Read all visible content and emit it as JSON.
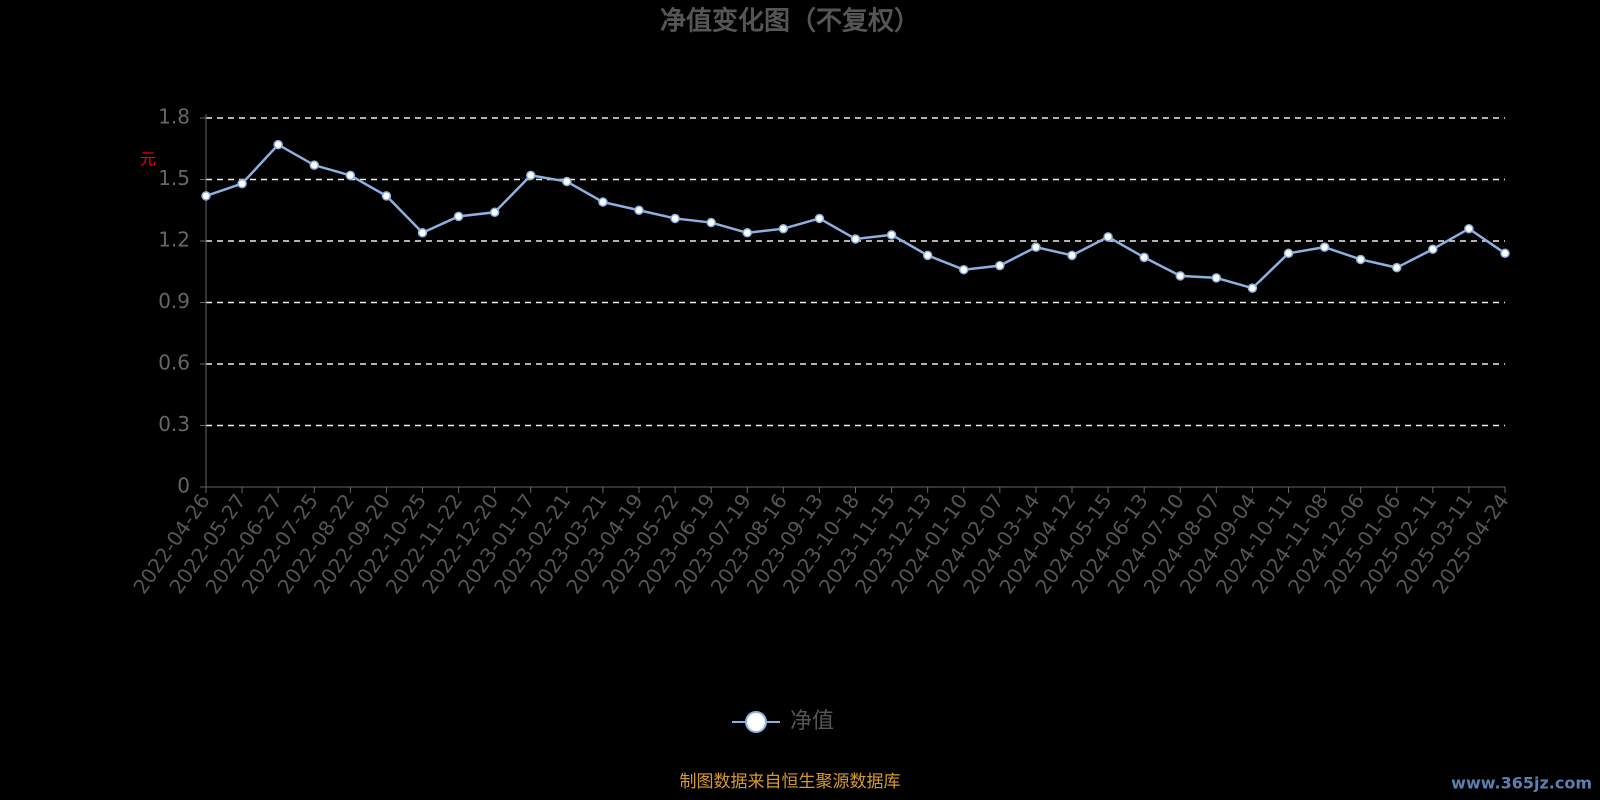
{
  "chart_data": {
    "type": "line",
    "title": "净值变化图（不复权）",
    "y_label": "元",
    "x": [
      "2022-04-26",
      "2022-05-27",
      "2022-06-27",
      "2022-07-25",
      "2022-08-22",
      "2022-09-20",
      "2022-10-25",
      "2022-11-22",
      "2022-12-20",
      "2023-01-17",
      "2023-02-21",
      "2023-03-21",
      "2023-04-19",
      "2023-05-22",
      "2023-06-19",
      "2023-07-19",
      "2023-08-16",
      "2023-09-13",
      "2023-10-18",
      "2023-11-15",
      "2023-12-13",
      "2024-01-10",
      "2024-02-07",
      "2024-03-14",
      "2024-04-12",
      "2024-05-15",
      "2024-06-13",
      "2024-07-10",
      "2024-08-07",
      "2024-09-04",
      "2024-10-11",
      "2024-11-08",
      "2024-12-06",
      "2025-01-06",
      "2025-02-11",
      "2025-03-11",
      "2025-04-24"
    ],
    "series": [
      {
        "name": "净值",
        "color": "#8cb0e0",
        "values": [
          1.42,
          1.48,
          1.67,
          1.57,
          1.52,
          1.42,
          1.24,
          1.32,
          1.34,
          1.52,
          1.49,
          1.39,
          1.35,
          1.31,
          1.29,
          1.24,
          1.26,
          1.31,
          1.21,
          1.23,
          1.13,
          1.06,
          1.08,
          1.17,
          1.13,
          1.22,
          1.12,
          1.03,
          1.02,
          0.97,
          1.14,
          1.17,
          1.11,
          1.07,
          1.16,
          1.26,
          1.14
        ]
      }
    ],
    "ylim": [
      0,
      1.8
    ],
    "yticks": [
      0,
      0.3,
      0.6,
      0.9,
      1.2,
      1.5,
      1.8
    ],
    "grid": true,
    "source": "制图数据来自恒生聚源数据库",
    "watermark": "www.365jz.com"
  }
}
